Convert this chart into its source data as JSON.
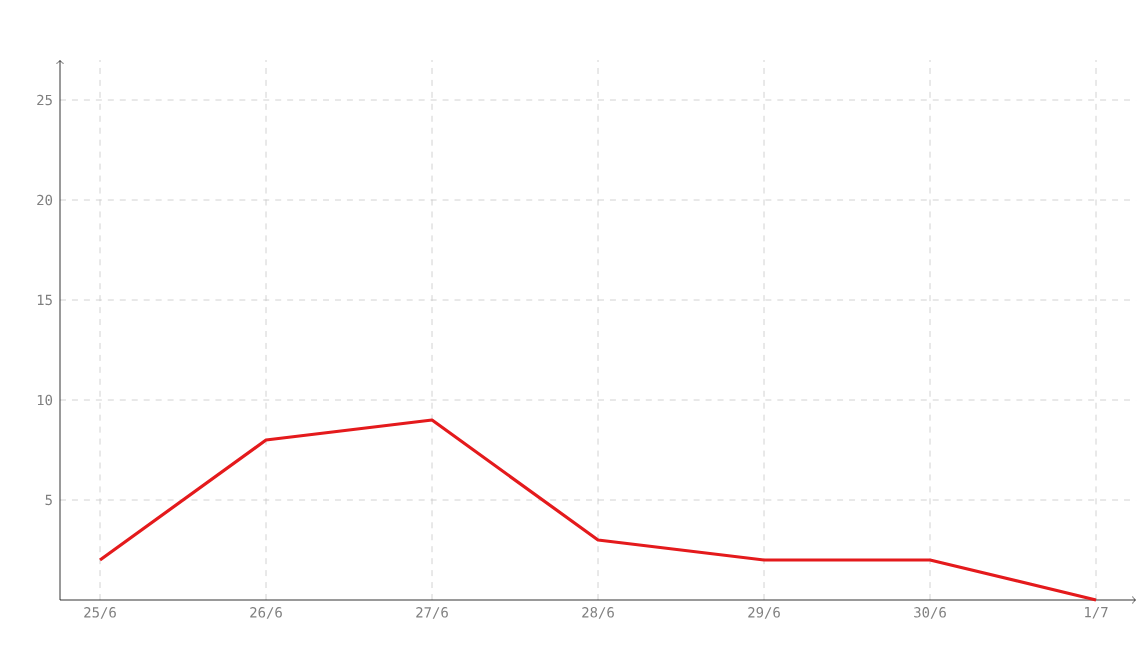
{
  "chart_data": {
    "type": "line",
    "categories": [
      "25/6",
      "26/6",
      "27/6",
      "28/6",
      "29/6",
      "30/6",
      "1/7"
    ],
    "series": [
      {
        "color": "#e41a1c",
        "values": [
          2,
          8,
          9,
          3,
          2,
          2,
          0
        ]
      }
    ],
    "ylim": [
      0,
      27
    ],
    "yticks": [
      5,
      10,
      15,
      20,
      25
    ],
    "grid": true,
    "marker": "none",
    "line_style": "solid"
  }
}
